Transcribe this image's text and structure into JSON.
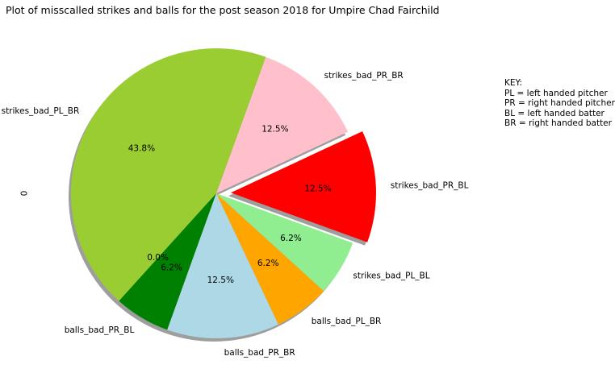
{
  "chart_data": {
    "type": "pie",
    "title": "Plot of misscalled strikes and balls for the post season 2018 for Umpire Chad Fairchild",
    "ylabel": "0",
    "slices": [
      {
        "label": "strikes_bad_PR_BL",
        "value": 12.5,
        "pct_label": "12.5%",
        "color": "#ff0000",
        "exploded": true
      },
      {
        "label": "strikes_bad_PR_BR",
        "value": 12.5,
        "pct_label": "12.5%",
        "color": "#ffc0cb",
        "exploded": false
      },
      {
        "label": "strikes_bad_PL_BR",
        "value": 43.8,
        "pct_label": "43.8%",
        "color": "#9acd32",
        "exploded": false
      },
      {
        "label": "",
        "value": 0.0,
        "pct_label": "0.0%",
        "color": "#9acd32",
        "exploded": false
      },
      {
        "label": "balls_bad_PR_BL",
        "value": 6.2,
        "pct_label": "6.2%",
        "color": "#008000",
        "exploded": false
      },
      {
        "label": "balls_bad_PR_BR",
        "value": 12.5,
        "pct_label": "12.5%",
        "color": "#add8e6",
        "exploded": false
      },
      {
        "label": "balls_bad_PL_BR",
        "value": 6.2,
        "pct_label": "6.2%",
        "color": "#ffa500",
        "exploded": false
      },
      {
        "label": "strikes_bad_PL_BL",
        "value": 6.2,
        "pct_label": "6.2%",
        "color": "#90ee90",
        "exploded": false
      }
    ],
    "shadow": true,
    "legend_placement": "right"
  },
  "key": {
    "heading": "KEY:",
    "lines": [
      "PL = left handed pitcher",
      "PR = right handed pitcher",
      "BL = left handed batter",
      "BR = right handed batter"
    ]
  }
}
